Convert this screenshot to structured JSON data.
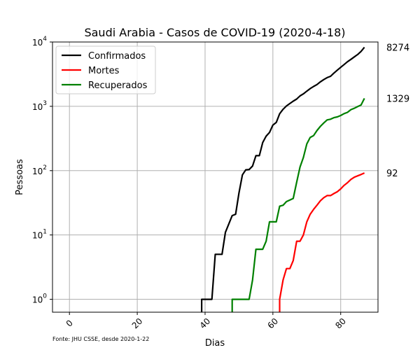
{
  "chart_data": {
    "type": "line",
    "title": "Saudi Arabia - Casos de COVID-19 (2020-4-18)",
    "xlabel": "Dias",
    "ylabel": "Pessoas",
    "yscale": "log",
    "xlim": [
      -5,
      91
    ],
    "ylim": [
      0.63,
      10000
    ],
    "xticks": [
      0,
      20,
      40,
      60,
      80
    ],
    "yticks": [
      {
        "base": "10",
        "exp": "0",
        "value": 1
      },
      {
        "base": "10",
        "exp": "1",
        "value": 10
      },
      {
        "base": "10",
        "exp": "2",
        "value": 100
      },
      {
        "base": "10",
        "exp": "3",
        "value": 1000
      },
      {
        "base": "10",
        "exp": "4",
        "value": 10000
      }
    ],
    "grid": true,
    "legend_position": "top-left",
    "source_note": "Fonte: JHU CSSE, desde 2020-1-22",
    "series": [
      {
        "name": "Confirmados",
        "color": "#000000",
        "end_label": "8274",
        "points": [
          [
            39,
            0.6
          ],
          [
            39,
            1
          ],
          [
            42,
            1
          ],
          [
            43,
            5
          ],
          [
            45,
            5
          ],
          [
            46,
            11
          ],
          [
            48,
            20
          ],
          [
            49,
            21
          ],
          [
            50,
            45
          ],
          [
            51,
            86
          ],
          [
            52,
            103
          ],
          [
            53,
            104
          ],
          [
            54,
            118
          ],
          [
            55,
            171
          ],
          [
            56,
            171
          ],
          [
            57,
            274
          ],
          [
            58,
            344
          ],
          [
            59,
            392
          ],
          [
            60,
            511
          ],
          [
            61,
            562
          ],
          [
            62,
            767
          ],
          [
            63,
            900
          ],
          [
            64,
            1012
          ],
          [
            65,
            1104
          ],
          [
            66,
            1203
          ],
          [
            67,
            1299
          ],
          [
            68,
            1453
          ],
          [
            69,
            1563
          ],
          [
            70,
            1720
          ],
          [
            71,
            1885
          ],
          [
            72,
            2039
          ],
          [
            73,
            2179
          ],
          [
            74,
            2402
          ],
          [
            75,
            2605
          ],
          [
            76,
            2795
          ],
          [
            77,
            2932
          ],
          [
            78,
            3287
          ],
          [
            79,
            3651
          ],
          [
            80,
            4033
          ],
          [
            81,
            4462
          ],
          [
            82,
            4934
          ],
          [
            83,
            5369
          ],
          [
            84,
            5862
          ],
          [
            85,
            6380
          ],
          [
            86,
            7142
          ],
          [
            87,
            8274
          ]
        ]
      },
      {
        "name": "Mortes",
        "color": "#ff0000",
        "end_label": "92",
        "points": [
          [
            62,
            0.6
          ],
          [
            62,
            1
          ],
          [
            63,
            2
          ],
          [
            64,
            3
          ],
          [
            65,
            3
          ],
          [
            66,
            4
          ],
          [
            67,
            8
          ],
          [
            68,
            8
          ],
          [
            69,
            10
          ],
          [
            70,
            16
          ],
          [
            71,
            21
          ],
          [
            72,
            25
          ],
          [
            73,
            29
          ],
          [
            74,
            34
          ],
          [
            75,
            38
          ],
          [
            76,
            41
          ],
          [
            77,
            41
          ],
          [
            78,
            44
          ],
          [
            79,
            47
          ],
          [
            80,
            52
          ],
          [
            81,
            59
          ],
          [
            82,
            65
          ],
          [
            83,
            73
          ],
          [
            84,
            79
          ],
          [
            85,
            83
          ],
          [
            86,
            87
          ],
          [
            87,
            92
          ]
        ]
      },
      {
        "name": "Recuperados",
        "color": "#008000",
        "end_label": "1329",
        "points": [
          [
            48,
            0.6
          ],
          [
            48,
            1
          ],
          [
            53,
            1
          ],
          [
            54,
            2
          ],
          [
            55,
            6
          ],
          [
            57,
            6
          ],
          [
            58,
            8
          ],
          [
            59,
            16
          ],
          [
            61,
            16
          ],
          [
            62,
            28
          ],
          [
            63,
            29
          ],
          [
            64,
            33
          ],
          [
            65,
            35
          ],
          [
            66,
            37
          ],
          [
            67,
            66
          ],
          [
            68,
            114
          ],
          [
            69,
            160
          ],
          [
            70,
            260
          ],
          [
            71,
            328
          ],
          [
            72,
            351
          ],
          [
            73,
            420
          ],
          [
            74,
            488
          ],
          [
            75,
            551
          ],
          [
            76,
            615
          ],
          [
            77,
            631
          ],
          [
            78,
            666
          ],
          [
            79,
            685
          ],
          [
            80,
            720
          ],
          [
            81,
            770
          ],
          [
            82,
            805
          ],
          [
            83,
            889
          ],
          [
            84,
            931
          ],
          [
            85,
            990
          ],
          [
            86,
            1049
          ],
          [
            87,
            1329
          ]
        ]
      }
    ]
  }
}
